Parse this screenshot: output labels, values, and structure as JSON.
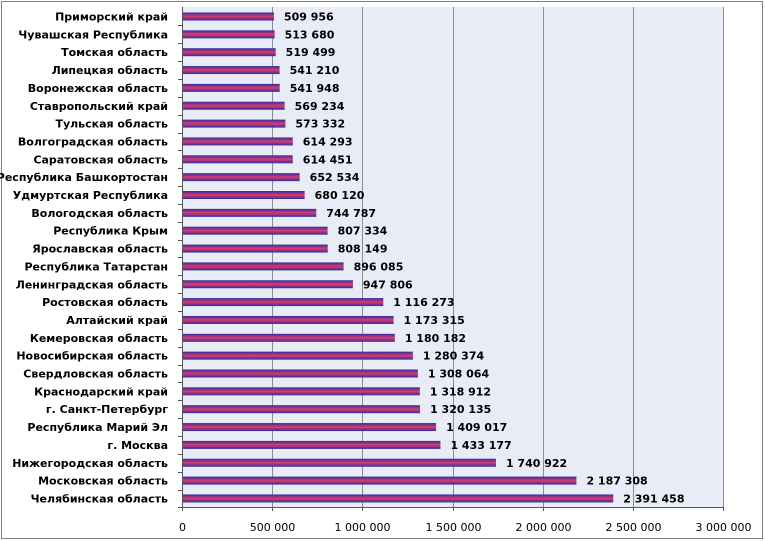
{
  "chart_data": {
    "type": "bar",
    "orientation": "horizontal",
    "categories": [
      "Приморский край",
      "Чувашская Республика",
      "Томская область",
      "Липецкая область",
      "Воронежская область",
      "Ставропольский край",
      "Тульская область",
      "Волгоградская область",
      "Саратовская область",
      "Республика Башкортостан",
      "Удмуртская Республика",
      "Вологодская область",
      "Республика Крым",
      "Ярославская область",
      "Республика Татарстан",
      "Ленинградская область",
      "Ростовская область",
      "Алтайский край",
      "Кемеровская область",
      "Новосибирская область",
      "Свердловская область",
      "Краснодарский край",
      "г. Санкт-Петербург",
      "Республика Марий Эл",
      "г. Москва",
      "Нижегородская область",
      "Московская область",
      "Челябинская область"
    ],
    "values": [
      509956,
      513680,
      519499,
      541210,
      541948,
      569234,
      573332,
      614293,
      614451,
      652534,
      680120,
      744787,
      807334,
      808149,
      896085,
      947806,
      1116273,
      1173315,
      1180182,
      1280374,
      1308064,
      1318912,
      1320135,
      1409017,
      1433177,
      1740922,
      2187308,
      2391458
    ],
    "value_labels": [
      "509 956",
      "513 680",
      "519 499",
      "541 210",
      "541 948",
      "569 234",
      "573 332",
      "614 293",
      "614 451",
      "652 534",
      "680 120",
      "744 787",
      "807 334",
      "808 149",
      "896 085",
      "947 806",
      "1 116 273",
      "1 173 315",
      "1 180 182",
      "1 280 374",
      "1 308 064",
      "1 318 912",
      "1 320 135",
      "1 409 017",
      "1 433 177",
      "1 740 922",
      "2 187 308",
      "2 391 458"
    ],
    "xlim": [
      0,
      3000000
    ],
    "ticks": [
      0,
      500000,
      1000000,
      1500000,
      2000000,
      2500000,
      3000000
    ],
    "tick_labels": [
      "0",
      "500 000",
      "1 000 000",
      "1 500 000",
      "2 000 000",
      "2 500 000",
      "3 000 000"
    ],
    "grid": "vertical",
    "legend": "none",
    "colors": {
      "plot_background": "#e8ecf6",
      "bar_top": "#2b2ea8",
      "bar_middle": "#e03a67",
      "bar_bottom": "#2b2ea8",
      "gridline": "#8c8c8c"
    }
  }
}
